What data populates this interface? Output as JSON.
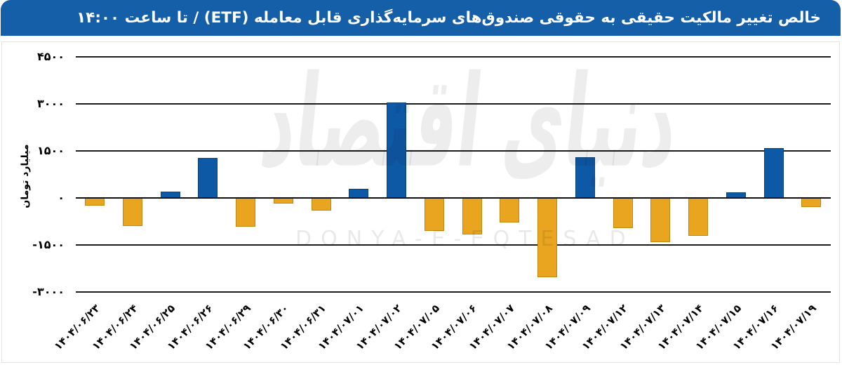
{
  "header": {
    "title": "خالص تغییر مالکیت حقیقی به حقوقی صندوق‌های سرمایه‌گذاری قابل معامله (ETF) / تا ساعت ۱۴:۰۰",
    "background": "#155FA8",
    "text_color": "#ffffff"
  },
  "watermark": {
    "persian": "دنیای اقتصاد",
    "latin": "DONYA-E-EQTESAD"
  },
  "chart_data": {
    "type": "bar",
    "title": "خالص تغییر مالکیت حقیقی به حقوقی صندوق‌های سرمایه‌گذاری قابل معامله (ETF) / تا ساعت ۱۴:۰۰",
    "ylabel": "میلیارد تومان",
    "xlabel": "",
    "categories": [
      "۱۴۰۴/۰۶/۲۳",
      "۱۴۰۴/۰۶/۲۴",
      "۱۴۰۴/۰۶/۲۵",
      "۱۴۰۴/۰۶/۲۶",
      "۱۴۰۴/۰۶/۲۹",
      "۱۴۰۴/۰۶/۳۰",
      "۱۴۰۴/۰۶/۳۱",
      "۱۴۰۴/۰۷/۰۱",
      "۱۴۰۴/۰۷/۰۲",
      "۱۴۰۴/۰۷/۰۵",
      "۱۴۰۴/۰۷/۰۶",
      "۱۴۰۴/۰۷/۰۷",
      "۱۴۰۴/۰۷/۰۸",
      "۱۴۰۴/۰۷/۰۹",
      "۱۴۰۴/۰۷/۱۲",
      "۱۴۰۴/۰۷/۱۳",
      "۱۴۰۴/۰۷/۱۴",
      "۱۴۰۴/۰۷/۱۵",
      "۱۴۰۴/۰۷/۱۶",
      "۱۴۰۴/۰۷/۱۹"
    ],
    "values": [
      -240,
      -890,
      200,
      1280,
      -910,
      -190,
      -400,
      280,
      3050,
      -1050,
      -1160,
      -780,
      -2530,
      1290,
      -970,
      -1400,
      -1200,
      180,
      1590,
      -300
    ],
    "yticks": [
      4500,
      3000,
      1500,
      0,
      -1500,
      -3000
    ],
    "ytick_labels": [
      "۴۵۰۰",
      "۳۰۰۰",
      "۱۵۰۰",
      "۰",
      "-۱۵۰۰",
      "-۳۰۰۰"
    ],
    "ylim": [
      -3000,
      4500
    ],
    "grid": true,
    "legend": false,
    "positive_color": "#0E59A6",
    "positive_edge_color": "#0A4377",
    "negative_color": "#E9A51F",
    "negative_edge_color": "#C08A12",
    "gridline_color": "#1c1c1c"
  }
}
